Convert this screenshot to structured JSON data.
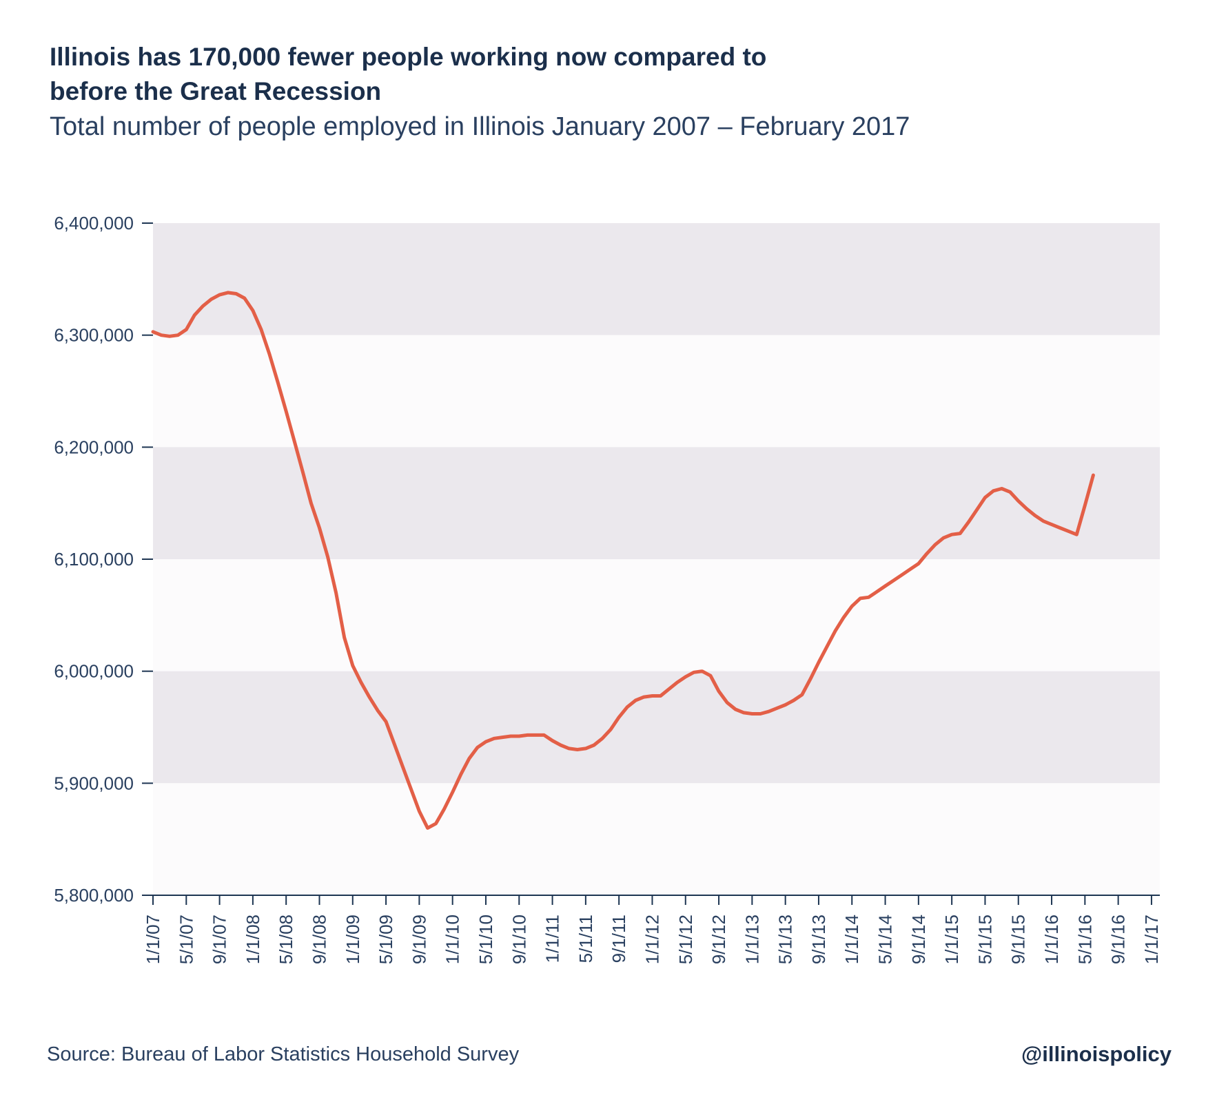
{
  "title_line1": "Illinois has 170,000 fewer people working now compared to",
  "title_line2": "before the Great Recession",
  "subtitle": "Total number of people employed in Illinois January 2007 – February 2017",
  "source": "Source: Bureau of Labor Statistics Household Survey",
  "handle": "@illinoispolicy",
  "colors": {
    "line": "#e35f47",
    "band": "#ebe8ed",
    "band_light": "#fcfbfc",
    "text": "#1d3552"
  },
  "chart_data": {
    "type": "line",
    "title": "Illinois has 170,000 fewer people working now compared to before the Great Recession",
    "subtitle": "Total number of people employed in Illinois January 2007 – February 2017",
    "xlabel": "",
    "ylabel": "",
    "ylim": [
      5800000,
      6400000
    ],
    "xlim": [
      "2007-01",
      "2017-02"
    ],
    "grid": "alternating horizontal bands",
    "y_ticks": [
      {
        "value": 6400000,
        "label": "6,400,000"
      },
      {
        "value": 6300000,
        "label": "6,300,000"
      },
      {
        "value": 6200000,
        "label": "6,200,000"
      },
      {
        "value": 6100000,
        "label": "6,100,000"
      },
      {
        "value": 6000000,
        "label": "6,000,000"
      },
      {
        "value": 5900000,
        "label": "5,900,000"
      },
      {
        "value": 5800000,
        "label": "5,800,000"
      }
    ],
    "x_ticks": [
      "1/1/07",
      "5/1/07",
      "9/1/07",
      "1/1/08",
      "5/1/08",
      "9/1/08",
      "1/1/09",
      "5/1/09",
      "9/1/09",
      "1/1/10",
      "5/1/10",
      "9/1/10",
      "1/1/11",
      "5/1/11",
      "9/1/11",
      "1/1/12",
      "5/1/12",
      "9/1/12",
      "1/1/13",
      "5/1/13",
      "9/1/13",
      "1/1/14",
      "5/1/14",
      "9/1/14",
      "1/1/15",
      "5/1/15",
      "9/1/15",
      "1/1/16",
      "5/1/16",
      "9/1/16",
      "1/1/17"
    ],
    "series": [
      {
        "name": "",
        "points": [
          [
            "2007-01",
            6303000
          ],
          [
            "2007-02",
            6300000
          ],
          [
            "2007-03",
            6299000
          ],
          [
            "2007-04",
            6300000
          ],
          [
            "2007-05",
            6305000
          ],
          [
            "2007-06",
            6318000
          ],
          [
            "2007-07",
            6326000
          ],
          [
            "2007-08",
            6332000
          ],
          [
            "2007-09",
            6336000
          ],
          [
            "2007-10",
            6338000
          ],
          [
            "2007-11",
            6337000
          ],
          [
            "2007-12",
            6333000
          ],
          [
            "2008-01",
            6322000
          ],
          [
            "2008-02",
            6305000
          ],
          [
            "2008-03",
            6283000
          ],
          [
            "2008-04",
            6258000
          ],
          [
            "2008-05",
            6232000
          ],
          [
            "2008-06",
            6205000
          ],
          [
            "2008-07",
            6178000
          ],
          [
            "2008-08",
            6150000
          ],
          [
            "2008-09",
            6128000
          ],
          [
            "2008-10",
            6102000
          ],
          [
            "2008-11",
            6070000
          ],
          [
            "2008-12",
            6030000
          ],
          [
            "2009-01",
            6005000
          ],
          [
            "2009-02",
            5990000
          ],
          [
            "2009-03",
            5977000
          ],
          [
            "2009-04",
            5965000
          ],
          [
            "2009-05",
            5955000
          ],
          [
            "2009-06",
            5935000
          ],
          [
            "2009-07",
            5915000
          ],
          [
            "2009-08",
            5895000
          ],
          [
            "2009-09",
            5875000
          ],
          [
            "2009-10",
            5860000
          ],
          [
            "2009-11",
            5864000
          ],
          [
            "2009-12",
            5877000
          ],
          [
            "2010-01",
            5892000
          ],
          [
            "2010-02",
            5908000
          ],
          [
            "2010-03",
            5922000
          ],
          [
            "2010-04",
            5932000
          ],
          [
            "2010-05",
            5937000
          ],
          [
            "2010-06",
            5940000
          ],
          [
            "2010-07",
            5941000
          ],
          [
            "2010-08",
            5942000
          ],
          [
            "2010-09",
            5942000
          ],
          [
            "2010-10",
            5943000
          ],
          [
            "2010-11",
            5943000
          ],
          [
            "2010-12",
            5943000
          ],
          [
            "2011-01",
            5938000
          ],
          [
            "2011-02",
            5934000
          ],
          [
            "2011-03",
            5931000
          ],
          [
            "2011-04",
            5930000
          ],
          [
            "2011-05",
            5931000
          ],
          [
            "2011-06",
            5934000
          ],
          [
            "2011-07",
            5940000
          ],
          [
            "2011-08",
            5948000
          ],
          [
            "2011-09",
            5959000
          ],
          [
            "2011-10",
            5968000
          ],
          [
            "2011-11",
            5974000
          ],
          [
            "2011-12",
            5977000
          ],
          [
            "2012-01",
            5978000
          ],
          [
            "2012-02",
            5978000
          ],
          [
            "2012-03",
            5984000
          ],
          [
            "2012-04",
            5990000
          ],
          [
            "2012-05",
            5995000
          ],
          [
            "2012-06",
            5999000
          ],
          [
            "2012-07",
            6000000
          ],
          [
            "2012-08",
            5996000
          ],
          [
            "2012-09",
            5982000
          ],
          [
            "2012-10",
            5972000
          ],
          [
            "2012-11",
            5966000
          ],
          [
            "2012-12",
            5963000
          ],
          [
            "2013-01",
            5962000
          ],
          [
            "2013-02",
            5962000
          ],
          [
            "2013-03",
            5964000
          ],
          [
            "2013-04",
            5967000
          ],
          [
            "2013-05",
            5970000
          ],
          [
            "2013-06",
            5974000
          ],
          [
            "2013-07",
            5979000
          ],
          [
            "2013-08",
            5993000
          ],
          [
            "2013-09",
            6008000
          ],
          [
            "2013-10",
            6022000
          ],
          [
            "2013-11",
            6036000
          ],
          [
            "2013-12",
            6048000
          ],
          [
            "2014-01",
            6058000
          ],
          [
            "2014-02",
            6065000
          ],
          [
            "2014-03",
            6066000
          ],
          [
            "2014-04",
            6071000
          ],
          [
            "2014-05",
            6076000
          ],
          [
            "2014-06",
            6081000
          ],
          [
            "2014-07",
            6086000
          ],
          [
            "2014-08",
            6091000
          ],
          [
            "2014-09",
            6096000
          ],
          [
            "2014-10",
            6105000
          ],
          [
            "2014-11",
            6113000
          ],
          [
            "2014-12",
            6119000
          ],
          [
            "2015-01",
            6122000
          ],
          [
            "2015-02",
            6123000
          ],
          [
            "2015-03",
            6133000
          ],
          [
            "2015-04",
            6144000
          ],
          [
            "2015-05",
            6155000
          ],
          [
            "2015-06",
            6161000
          ],
          [
            "2015-07",
            6163000
          ],
          [
            "2015-08",
            6160000
          ],
          [
            "2015-09",
            6152000
          ],
          [
            "2015-10",
            6145000
          ],
          [
            "2015-11",
            6139000
          ],
          [
            "2015-12",
            6134000
          ],
          [
            "2016-01",
            6131000
          ],
          [
            "2016-02",
            6128000
          ],
          [
            "2016-03",
            6125000
          ],
          [
            "2016-04",
            6122000
          ],
          [
            "2016-05",
            6148000
          ],
          [
            "2016-06",
            6175000
          ]
        ]
      }
    ]
  }
}
